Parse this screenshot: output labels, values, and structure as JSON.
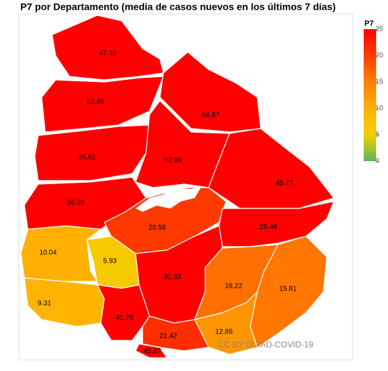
{
  "chart_data": {
    "type": "choropleth",
    "title": "P7 por Departamento (media de casos nuevos en los últimos 7 días)",
    "values": [
      47.32,
      32.49,
      64.87,
      25.61,
      52.69,
      45.77,
      56.28,
      20.58,
      25.46,
      10.04,
      5.93,
      31.33,
      16.22,
      15.81,
      9.31,
      41.7,
      12.85,
      21.42,
      45.87
    ],
    "value_labels": [
      "47.32",
      "32.49",
      "64.87",
      "25.61",
      "52.69",
      "45.77",
      "56.28",
      "20.58",
      "25.46",
      "10.04",
      "5.93",
      "31.33",
      "16.22",
      "15.81",
      "9.31",
      "41.70",
      "12.85",
      "21.42",
      "45.87"
    ],
    "legend_title": "P7",
    "colorlim": [
      0,
      25
    ],
    "colorticks": [
      0,
      5,
      10,
      15,
      20,
      25
    ],
    "colorscale": [
      "#5cb85c",
      "#f5d000",
      "#ffb000",
      "#ff8000",
      "#ff4000",
      "#ff0000"
    ],
    "annotation": "CC BY GUIAD-COVID-19"
  }
}
